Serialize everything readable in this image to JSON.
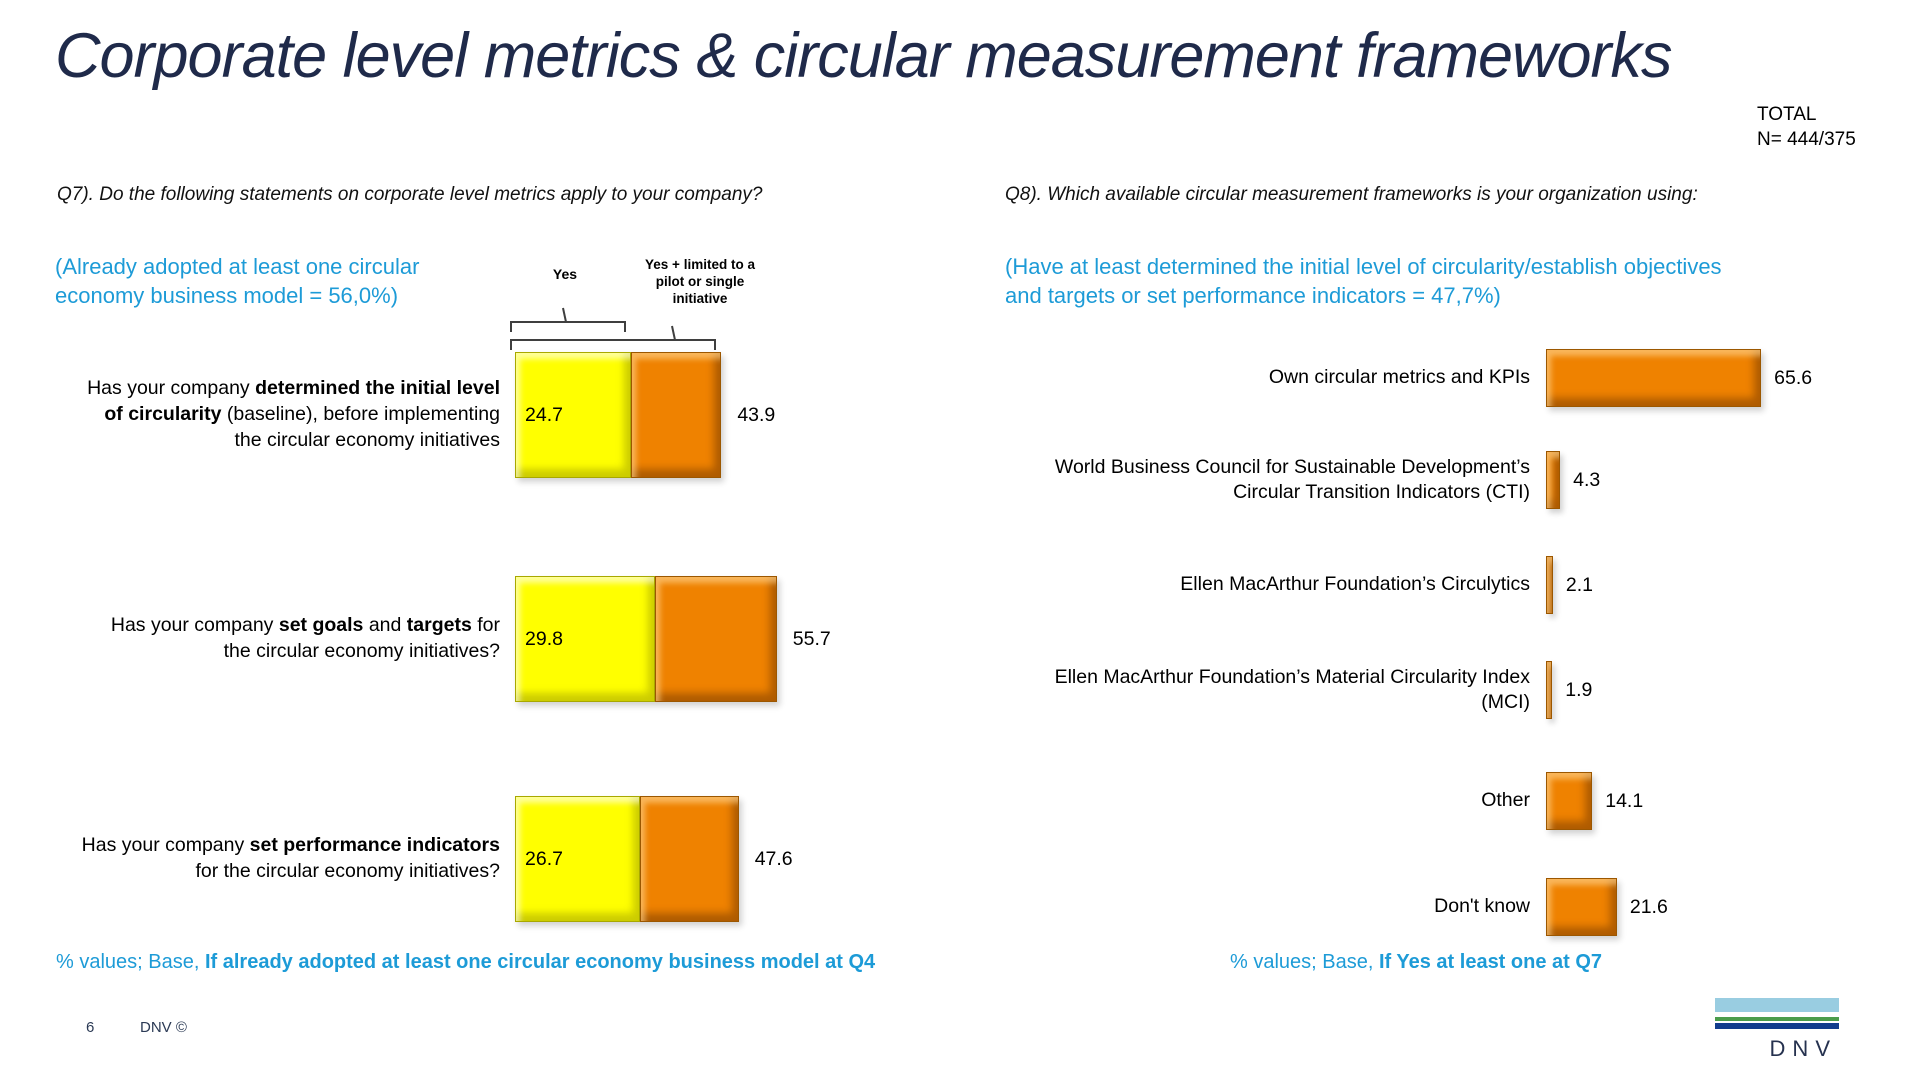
{
  "slide": {
    "title": "Corporate level metrics & circular measurement frameworks",
    "total_line1": "TOTAL",
    "total_line2": "N= 444/375",
    "page_number": "6",
    "copyright": "DNV ©",
    "logo_text": "DNV"
  },
  "colors": {
    "title_navy": "#1f2a4a",
    "accent_blue": "#1d9bd7",
    "bar_yellow": "#ffff00",
    "bar_orange": "#ef8200",
    "logo_sky": "#99cde1",
    "logo_green": "#4b9d4b",
    "logo_navy": "#123c8d"
  },
  "q7": {
    "question": "Q7). Do the following statements on corporate level metrics apply to your company?",
    "subtitle_line1": "(Already adopted at least one circular",
    "subtitle_line2": "economy business model = 56,0%)",
    "legend": {
      "yes": "Yes",
      "yes_plus": "Yes + limited to a pilot or single initiative"
    },
    "rows": [
      {
        "label_pre": "Has your company ",
        "label_bold1": "determined the initial level of circularity",
        "label_mid": " (baseline), before implementing the circular economy initiatives",
        "label_bold2": "",
        "label_post": ""
      },
      {
        "label_pre": "Has your company ",
        "label_bold1": "set goals",
        "label_mid": " and ",
        "label_bold2": "targets",
        "label_post": " for the circular economy initiatives?"
      },
      {
        "label_pre": "Has your company ",
        "label_bold1": "set performance indicators",
        "label_mid": " for the circular economy initiatives?",
        "label_bold2": "",
        "label_post": ""
      }
    ],
    "footer_prefix": "% values; Base, ",
    "footer_bold": "If already adopted at least one circular economy business model at Q4"
  },
  "q8": {
    "question": "Q8). Which available circular measurement frameworks is your organization using:",
    "subtitle_line1": "(Have at least determined the initial level of circularity/establish objectives",
    "subtitle_line2": "and targets or set performance indicators = 47,7%)",
    "footer_prefix": "% values; Base, ",
    "footer_bold": "If Yes at least one at Q7"
  },
  "chart_data": [
    {
      "type": "bar",
      "orientation": "horizontal",
      "stacked": true,
      "title": "Q7). Do the following statements on corporate level metrics apply to your company?",
      "subtitle": "(Already adopted at least one circular economy business model = 56,0%)",
      "categories": [
        "Has your company determined the initial level of circularity (baseline), before implementing the circular economy initiatives",
        "Has your company set goals and targets for the circular economy initiatives?",
        "Has your company set performance indicators for the circular economy initiatives?"
      ],
      "series": [
        {
          "name": "Yes",
          "values": [
            24.7,
            29.8,
            26.7
          ]
        },
        {
          "name": "Yes + limited to a pilot or single initiative (cumulative total shown at bar end)",
          "values": [
            43.9,
            55.7,
            47.6
          ]
        }
      ],
      "value_unit": "%",
      "legend_position": "top",
      "grid": false,
      "base_note": "% values; Base, If already adopted at least one circular economy business model at Q4",
      "series_colors": [
        "#ffff00",
        "#ef8200"
      ]
    },
    {
      "type": "bar",
      "orientation": "horizontal",
      "title": "Q8). Which available circular measurement frameworks is your organization using:",
      "subtitle": "(Have at least determined the initial level of circularity/establish objectives and targets or set performance indicators = 47,7%)",
      "categories": [
        "Own circular metrics and KPIs",
        "World Business Council for Sustainable Development’s Circular Transition Indicators (CTI)",
        "Ellen MacArthur Foundation’s Circulytics",
        "Ellen MacArthur Foundation’s Material Circularity Index (MCI)",
        "Other",
        "Don't know"
      ],
      "values": [
        65.6,
        4.3,
        2.1,
        1.9,
        14.1,
        21.6
      ],
      "value_unit": "%",
      "grid": false,
      "base_note": "% values; Base, If Yes at least one at Q7",
      "series_colors": [
        "#ef8200"
      ]
    }
  ]
}
